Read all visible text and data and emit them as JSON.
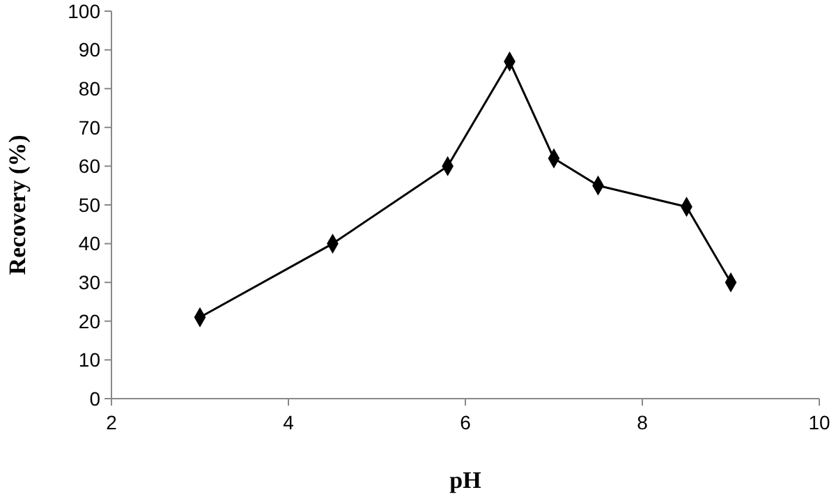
{
  "chart_data": {
    "type": "line",
    "xlabel": "pH",
    "ylabel": "Recovery (%)",
    "x": [
      3,
      4.5,
      5.8,
      6.5,
      7,
      7.5,
      8.5,
      9
    ],
    "series": [
      {
        "color": "#000000",
        "values": [
          21,
          40,
          60,
          87,
          62,
          55,
          49.5,
          30
        ]
      }
    ],
    "xlim": [
      2,
      10
    ],
    "xticks": [
      2,
      4,
      6,
      8,
      10
    ],
    "ylim": [
      0,
      100
    ],
    "yticks": [
      0,
      10,
      20,
      30,
      40,
      50,
      60,
      70,
      80,
      90,
      100
    ],
    "grid": false,
    "marker": "diamond",
    "line_style": "solid"
  }
}
